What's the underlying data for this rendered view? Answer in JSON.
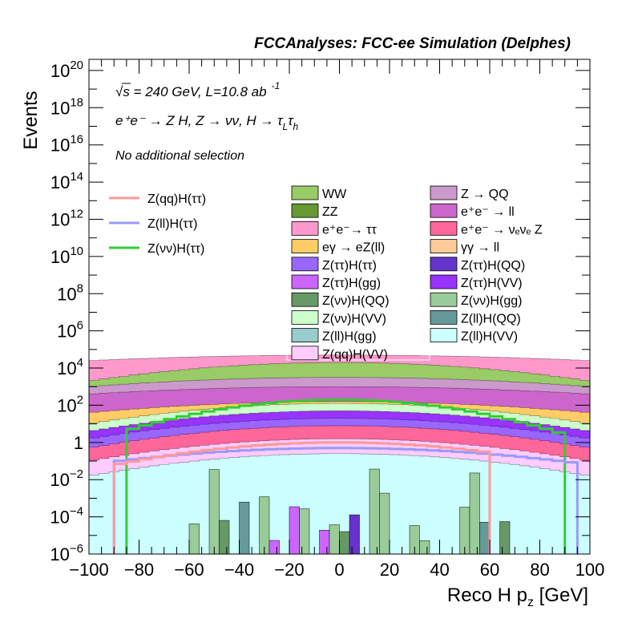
{
  "chart_data": {
    "type": "stacked-histogram",
    "title": "FCCAnalyses: FCC-ee Simulation (Delphes)",
    "xlabel_main": "Reco H p",
    "xlabel_sub": "z",
    "xlabel_unit": " [GeV]",
    "ylabel": "Events",
    "xlim": [
      -100,
      100
    ],
    "ylim_log10": [
      -6,
      20.6
    ],
    "yscale": "log",
    "x_ticks": [
      -100,
      -80,
      -60,
      -40,
      -20,
      0,
      20,
      40,
      60,
      80,
      100
    ],
    "x_tick_labels": [
      "−100",
      "−80",
      "−60",
      "−40",
      "−20",
      "0",
      "20",
      "40",
      "60",
      "80",
      "100"
    ],
    "y_ticks": [
      {
        "exp": -6,
        "base": "10",
        "sup": "−6"
      },
      {
        "exp": -4,
        "base": "10",
        "sup": "−4"
      },
      {
        "exp": -2,
        "base": "10",
        "sup": "−2"
      },
      {
        "exp": 0,
        "base": "1",
        "sup": ""
      },
      {
        "exp": 2,
        "base": "10",
        "sup": "2"
      },
      {
        "exp": 4,
        "base": "10",
        "sup": "4"
      },
      {
        "exp": 6,
        "base": "10",
        "sup": "6"
      },
      {
        "exp": 8,
        "base": "10",
        "sup": "8"
      },
      {
        "exp": 10,
        "base": "10",
        "sup": "10"
      },
      {
        "exp": 12,
        "base": "10",
        "sup": "12"
      },
      {
        "exp": 14,
        "base": "10",
        "sup": "14"
      },
      {
        "exp": 16,
        "base": "10",
        "sup": "16"
      },
      {
        "exp": 18,
        "base": "10",
        "sup": "18"
      },
      {
        "exp": 20,
        "base": "10",
        "sup": "20"
      }
    ],
    "annotations": {
      "energy": "√s = 240 GeV, L=10.8 ab",
      "energy_sup": "-1",
      "process": "e⁺e⁻ → Z H, Z → νν, H → τ",
      "process_sub1": "L",
      "process_mid": "τ",
      "process_sub2": "h",
      "selection": "No additional selection"
    },
    "signal_legend": [
      {
        "name": "Z(qq)H(ττ)",
        "color": "#ff9999"
      },
      {
        "name": "Z(ll)H(ττ)",
        "color": "#9999ff"
      },
      {
        "name": "Z(νν)H(ττ)",
        "color": "#33cc33"
      }
    ],
    "background_legend": [
      {
        "name": "WW",
        "color": "#99cc66"
      },
      {
        "name": "Z → QQ",
        "color": "#cc99cc"
      },
      {
        "name": "ZZ",
        "color": "#669933"
      },
      {
        "name": "e⁺e⁻ → ll",
        "color": "#cc66cc"
      },
      {
        "name": "e⁺e⁻→ ττ",
        "color": "#ff99cc"
      },
      {
        "name": "e⁺e⁻ → νₑνₑ Z",
        "color": "#ff6699"
      },
      {
        "name": "eγ → eZ(ll)",
        "color": "#ffcc66"
      },
      {
        "name": "γγ → ll",
        "color": "#ffcc99"
      },
      {
        "name": "Z(ττ)H(ττ)",
        "color": "#9966ff"
      },
      {
        "name": "Z(ττ)H(QQ)",
        "color": "#6633cc"
      },
      {
        "name": "Z(ττ)H(gg)",
        "color": "#cc66ff"
      },
      {
        "name": "Z(ττ)H(VV)",
        "color": "#9933ff"
      },
      {
        "name": "Z(νν)H(QQ)",
        "color": "#669966"
      },
      {
        "name": "Z(νν)H(gg)",
        "color": "#99cc99"
      },
      {
        "name": "Z(νν)H(VV)",
        "color": "#ccffcc"
      },
      {
        "name": "Z(ll)H(QQ)",
        "color": "#669999"
      },
      {
        "name": "Z(ll)H(gg)",
        "color": "#99cccc"
      },
      {
        "name": "Z(ll)H(VV)",
        "color": "#ccffff"
      },
      {
        "name": "Z(qq)H(VV)",
        "color": "#ffccff"
      }
    ],
    "stack_envelopes": [
      {
        "name": "e⁺e⁻→ ττ",
        "color": "#ff99cc",
        "edge": 4.4,
        "center": 4.7
      },
      {
        "name": "WW",
        "color": "#99cc66",
        "edge": 3.3,
        "center": 4.3
      },
      {
        "name": "Z → QQ",
        "color": "#cc99cc",
        "edge": 3.0,
        "center": 3.5
      },
      {
        "name": "e⁺e⁻ → ll",
        "color": "#cc66cc",
        "edge": 2.6,
        "center": 3.0
      },
      {
        "name": "eγ → eZ(ll)",
        "color": "#ffcc66",
        "edge": 1.6,
        "center": 2.2
      },
      {
        "name": "Z(νν)H(VV)",
        "color": "#ccffcc",
        "edge": 1.0,
        "center": 2.1
      },
      {
        "name": "Z(ττ)H(VV)",
        "color": "#9933ff",
        "edge": 0.6,
        "center": 1.7
      },
      {
        "name": "Z(ττ)H(ττ)",
        "color": "#9966ff",
        "edge": 0.2,
        "center": 1.3
      },
      {
        "name": "e⁺e⁻ → νₑνₑ Z",
        "color": "#ff6699",
        "edge": -0.3,
        "center": 0.9
      },
      {
        "name": "Z(qq)H(VV)",
        "color": "#ffccff",
        "edge": -1.0,
        "center": 0.2
      },
      {
        "name": "Z(ll)H(VV)",
        "color": "#ccffff",
        "edge": -1.8,
        "center": -0.6
      }
    ],
    "signal_lines": [
      {
        "name": "Z(νν)H(ττ)",
        "color": "#33cc33",
        "center": 2.3,
        "edge": 0.0,
        "xmin": -86,
        "xmax": 88
      },
      {
        "name": "Z(ll)H(ττ)",
        "color": "#9999ff",
        "center": -0.3,
        "edge": -1.2,
        "xmin": -92,
        "xmax": 96
      },
      {
        "name": "Z(qq)H(ττ)",
        "color": "#ff9999",
        "center": 0.0,
        "edge": -1.5,
        "xmin": -88,
        "xmax": 60
      }
    ]
  }
}
